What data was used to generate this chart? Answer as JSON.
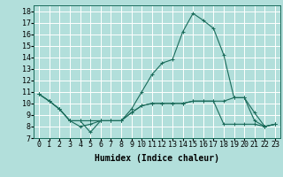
{
  "title": "",
  "xlabel": "Humidex (Indice chaleur)",
  "bg_color": "#b2dfdb",
  "grid_color": "#ffffff",
  "line_color": "#1a6b5a",
  "xlim": [
    -0.5,
    23.5
  ],
  "ylim": [
    7,
    18.5
  ],
  "yticks": [
    7,
    8,
    9,
    10,
    11,
    12,
    13,
    14,
    15,
    16,
    17,
    18
  ],
  "xticks": [
    0,
    1,
    2,
    3,
    4,
    5,
    6,
    7,
    8,
    9,
    10,
    11,
    12,
    13,
    14,
    15,
    16,
    17,
    18,
    19,
    20,
    21,
    22,
    23
  ],
  "series": [
    {
      "x": [
        0,
        1,
        2,
        3,
        4,
        5,
        6,
        7,
        8,
        9,
        10,
        11,
        12,
        13,
        14,
        15,
        16,
        17,
        18,
        19,
        20,
        21,
        22,
        23
      ],
      "y": [
        10.8,
        10.2,
        9.5,
        8.5,
        8.5,
        7.5,
        8.5,
        8.5,
        8.5,
        9.5,
        11.0,
        12.5,
        13.5,
        13.8,
        16.2,
        17.8,
        17.2,
        16.5,
        14.2,
        10.5,
        10.5,
        9.2,
        8.0,
        8.2
      ]
    },
    {
      "x": [
        0,
        1,
        2,
        3,
        4,
        5,
        6,
        7,
        8,
        9,
        10,
        11,
        12,
        13,
        14,
        15,
        16,
        17,
        18,
        19,
        20,
        21,
        22,
        23
      ],
      "y": [
        10.8,
        10.2,
        9.5,
        8.5,
        8.0,
        8.2,
        8.5,
        8.5,
        8.5,
        9.2,
        9.8,
        10.0,
        10.0,
        10.0,
        10.0,
        10.2,
        10.2,
        10.2,
        10.2,
        10.5,
        10.5,
        8.5,
        8.0,
        8.2
      ]
    },
    {
      "x": [
        0,
        1,
        2,
        3,
        4,
        5,
        6,
        7,
        8,
        9,
        10,
        11,
        12,
        13,
        14,
        15,
        16,
        17,
        18,
        19,
        20,
        21,
        22,
        23
      ],
      "y": [
        10.8,
        10.2,
        9.5,
        8.5,
        8.5,
        8.5,
        8.5,
        8.5,
        8.5,
        9.2,
        9.8,
        10.0,
        10.0,
        10.0,
        10.0,
        10.2,
        10.2,
        10.2,
        8.2,
        8.2,
        8.2,
        8.2,
        8.0,
        8.2
      ]
    }
  ],
  "font_family": "monospace",
  "xlabel_fontsize": 7,
  "tick_fontsize": 6
}
